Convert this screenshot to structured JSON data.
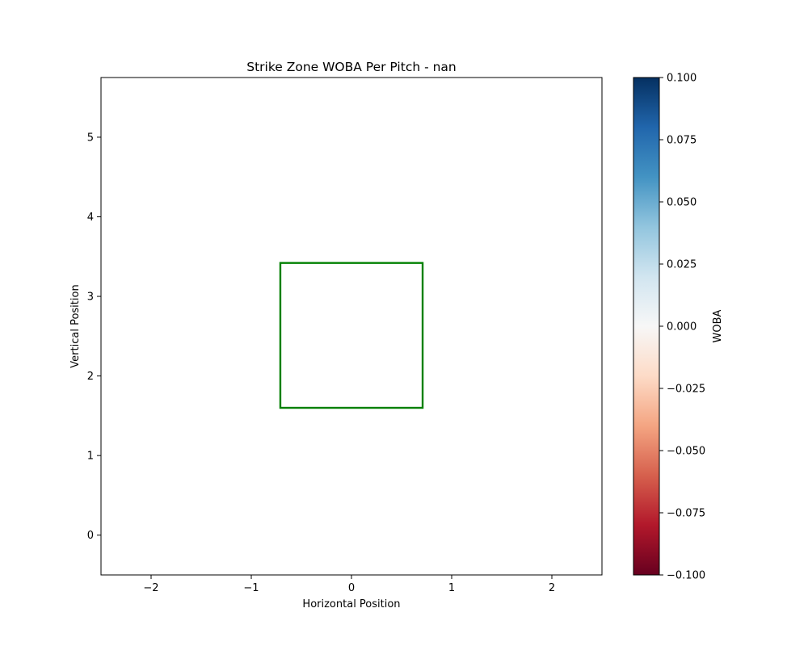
{
  "chart_data": {
    "type": "scatter",
    "title": "Strike Zone WOBA Per Pitch - nan",
    "xlabel": "Horizontal Position",
    "ylabel": "Vertical Position",
    "xlim": [
      -2.5,
      2.5
    ],
    "ylim": [
      -0.5,
      5.75
    ],
    "xticks": [
      -2,
      -1,
      0,
      1,
      2
    ],
    "xtick_labels": [
      "−2",
      "−1",
      "0",
      "1",
      "2"
    ],
    "yticks": [
      0,
      1,
      2,
      3,
      4,
      5
    ],
    "ytick_labels": [
      "0",
      "1",
      "2",
      "3",
      "4",
      "5"
    ],
    "grid": false,
    "points": [],
    "strike_zone": {
      "x": [
        -0.71,
        0.71
      ],
      "y": [
        1.6,
        3.42
      ],
      "color": "#008000"
    },
    "colorbar": {
      "label": "WOBA",
      "colormap": "RdBu",
      "range": [
        -0.1,
        0.1
      ],
      "ticks": [
        0.1,
        0.075,
        0.05,
        0.025,
        0.0,
        -0.025,
        -0.05,
        -0.075,
        -0.1
      ],
      "tick_labels": [
        "0.100",
        "0.075",
        "0.050",
        "0.025",
        "0.000",
        "−0.025",
        "−0.050",
        "−0.075",
        "−0.100"
      ],
      "colors": [
        "#053061",
        "#2166ac",
        "#4393c3",
        "#92c5de",
        "#d1e5f0",
        "#f7f7f7",
        "#fddbc7",
        "#f4a582",
        "#d6604d",
        "#b2182b",
        "#67001f"
      ]
    }
  }
}
